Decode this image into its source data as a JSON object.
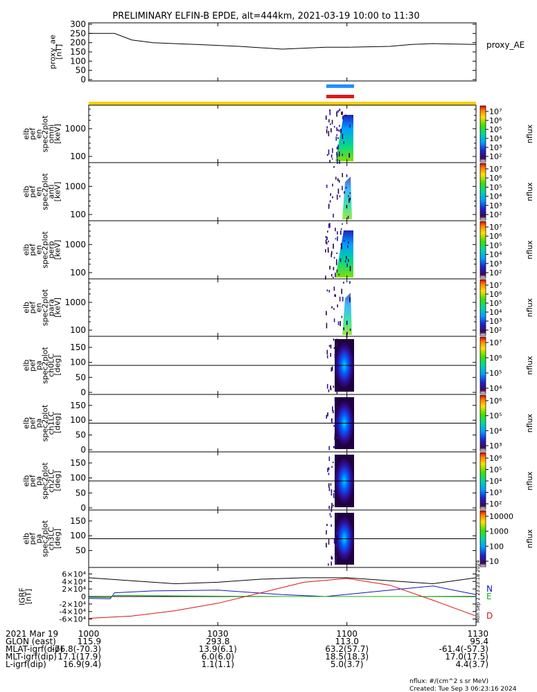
{
  "title": "PRELIMINARY ELFIN-B EPDE, alt=444km, 2021-03-19 10:00 to 11:30",
  "colors": {
    "ae_line": "#000000",
    "yellow_bar": "#f5d000",
    "blue_bar": "#1e90ff",
    "red_bar": "#e01818",
    "grf_n": "#1010c8",
    "grf_e": "#10b010",
    "grf_d": "#d81010",
    "grf_total": "#000000"
  },
  "chart_data": [
    {
      "type": "line",
      "panel": "proxy_ae",
      "ylabel_lines": [
        "proxy_ae",
        "[nT]"
      ],
      "legend": "proxy_AE",
      "ylim": [
        0,
        300
      ],
      "yticks": [
        "0",
        "50",
        "100",
        "150",
        "200",
        "250",
        "300"
      ],
      "x_minutes": [
        0,
        6,
        10,
        15,
        25,
        35,
        45,
        55,
        60,
        70,
        75,
        80,
        90
      ],
      "values": [
        250,
        250,
        215,
        200,
        190,
        180,
        165,
        175,
        175,
        180,
        190,
        195,
        190
      ]
    },
    {
      "type": "heatmap",
      "panel": "omni",
      "ylabel_lines": [
        "elb",
        "pef",
        "en",
        "spec2plot",
        "omni",
        "[keV]"
      ],
      "yscale": "log",
      "yticks": [
        "100",
        "1000"
      ],
      "colorbar_label": "nflux",
      "colorbar_ticks": [
        "10²",
        "10³",
        "10⁴",
        "10⁵",
        "10⁶",
        "10⁷"
      ]
    },
    {
      "type": "heatmap",
      "panel": "anti",
      "ylabel_lines": [
        "elb",
        "pef",
        "en",
        "spec2plot",
        "anti",
        "[keV]"
      ],
      "yscale": "log",
      "yticks": [
        "100",
        "1000"
      ],
      "colorbar_label": "nflux",
      "colorbar_ticks": [
        "10²",
        "10³",
        "10⁴",
        "10⁵",
        "10⁶",
        "10⁷"
      ]
    },
    {
      "type": "heatmap",
      "panel": "perp",
      "ylabel_lines": [
        "elb",
        "pef",
        "en",
        "spec2plot",
        "perp",
        "[keV]"
      ],
      "yscale": "log",
      "yticks": [
        "100",
        "1000"
      ],
      "colorbar_label": "nflux",
      "colorbar_ticks": [
        "10²",
        "10³",
        "10⁴",
        "10⁵",
        "10⁶",
        "10⁷"
      ]
    },
    {
      "type": "heatmap",
      "panel": "para",
      "ylabel_lines": [
        "elb",
        "pef",
        "en",
        "spec2plot",
        "para",
        "[keV]"
      ],
      "yscale": "log",
      "yticks": [
        "100",
        "1000"
      ],
      "colorbar_label": "nflux",
      "colorbar_ticks": [
        "10²",
        "10³",
        "10⁴",
        "10⁵",
        "10⁶",
        "10⁷"
      ]
    },
    {
      "type": "heatmap",
      "panel": "ch0LC",
      "ylabel_lines": [
        "elb",
        "pef",
        "pa",
        "spec2plot",
        "ch0LC",
        "[deg]"
      ],
      "yticks": [
        "0",
        "50",
        "100",
        "150"
      ],
      "colorbar_label": "nflux",
      "colorbar_ticks": [
        "10⁴",
        "10⁵",
        "10⁶",
        "10⁷"
      ]
    },
    {
      "type": "heatmap",
      "panel": "ch1LC",
      "ylabel_lines": [
        "elb",
        "pef",
        "pa",
        "spec2plot",
        "ch1LC",
        "[deg]"
      ],
      "yticks": [
        "0",
        "50",
        "100",
        "150"
      ],
      "colorbar_label": "nflux",
      "colorbar_ticks": [
        "10³",
        "10⁴",
        "10⁵",
        "10⁶"
      ]
    },
    {
      "type": "heatmap",
      "panel": "ch2LC",
      "ylabel_lines": [
        "elb",
        "pef",
        "pa",
        "spec2plot",
        "ch2LC",
        "[deg]"
      ],
      "yticks": [
        "0",
        "50",
        "100",
        "150"
      ],
      "colorbar_label": "nflux",
      "colorbar_ticks": [
        "10²",
        "10³",
        "10⁴",
        "10⁵",
        "10⁶"
      ]
    },
    {
      "type": "heatmap",
      "panel": "ch3LC",
      "ylabel_lines": [
        "elb",
        "pef",
        "pa",
        "spec2plot",
        "ch3LC",
        "[deg]"
      ],
      "yticks": [
        "50",
        "100",
        "150"
      ],
      "colorbar_label": "nflux",
      "colorbar_ticks": [
        "10",
        "100",
        "1000",
        "10000"
      ]
    },
    {
      "type": "line",
      "panel": "igrf",
      "ylabel_lines": [
        "IGRF",
        "[nT]"
      ],
      "ylim": [
        -70000,
        70000
      ],
      "yticks": [
        "-6×10⁴",
        "-4×10⁴",
        "-2×10⁴",
        "0",
        "2×10⁴",
        "4×10⁴",
        "6×10⁴"
      ],
      "series": [
        {
          "name": "N",
          "x_minutes": [
            0,
            5,
            6,
            15,
            30,
            45,
            55,
            70,
            80,
            90
          ],
          "values": [
            -5000,
            -6000,
            10000,
            15000,
            17000,
            5000,
            0,
            17000,
            28000,
            5000
          ]
        },
        {
          "name": "E",
          "x_minutes": [
            0,
            5,
            6,
            15,
            30,
            45,
            60,
            75,
            90
          ],
          "values": [
            -2000,
            -3000,
            3000,
            2000,
            1000,
            0,
            0,
            0,
            -1000
          ]
        },
        {
          "name": "D",
          "x_minutes": [
            0,
            10,
            20,
            30,
            40,
            50,
            60,
            70,
            80,
            90
          ],
          "values": [
            -58000,
            -52000,
            -38000,
            -18000,
            10000,
            38000,
            48000,
            30000,
            -10000,
            -52000
          ]
        },
        {
          "name": "",
          "x_minutes": [
            0,
            10,
            20,
            30,
            40,
            50,
            60,
            70,
            80,
            90
          ],
          "values": [
            50000,
            42000,
            34000,
            38000,
            46000,
            50000,
            50000,
            42000,
            34000,
            50000
          ]
        }
      ]
    }
  ],
  "x_axis": {
    "tick_labels": [
      "1000",
      "1030",
      "1100",
      "1130"
    ],
    "rows": [
      {
        "label": "2021 Mar 19",
        "values": [
          "1000",
          "1030",
          "1100",
          "1130"
        ]
      },
      {
        "label": "GLON (east)",
        "values": [
          "115.9",
          "293.8",
          "113.0",
          "95.4"
        ]
      },
      {
        "label": "MLAT-igrf(dip)",
        "values": [
          "-76.8(-70.3)",
          "13.9(6.1)",
          "63.2(57.7)",
          "-61.4(-57.3)"
        ]
      },
      {
        "label": "MLT-igrf(dip)",
        "values": [
          "17.1(17.9)",
          "6.0(6.0)",
          "18.5(18.3)",
          "17.0(17.5)"
        ]
      },
      {
        "label": "L-igrf(dip)",
        "values": [
          "16.9(9.4)",
          "1.1(1.1)",
          "5.0(3.7)",
          "4.4(3.7)"
        ]
      }
    ]
  },
  "footer": {
    "units": "nflux: #/(cm^2 s sr MeV)",
    "created": "Created: Tue Sep  3 06:23:16 2024",
    "vertical_stamp": "Mon Sep  2 23:23:18 2024"
  }
}
